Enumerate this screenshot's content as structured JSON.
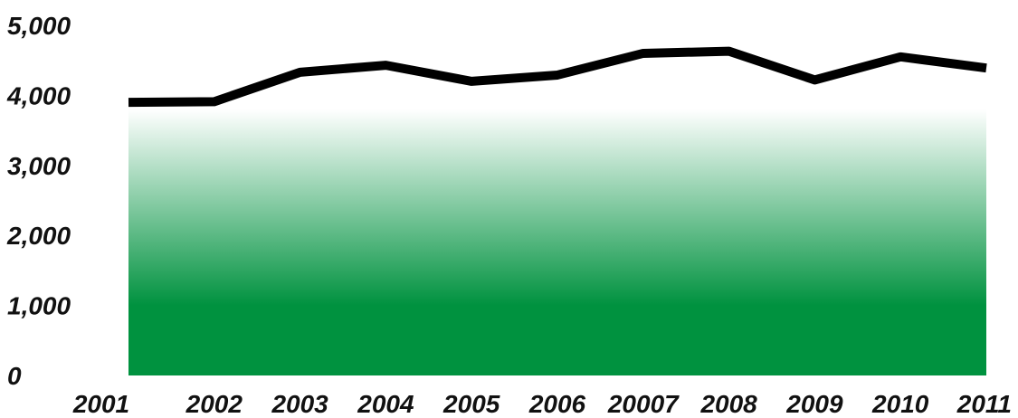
{
  "chart_data": {
    "type": "area",
    "title": "",
    "xlabel": "",
    "ylabel": "",
    "categories": [
      "2001",
      "2002",
      "2003",
      "2004",
      "2005",
      "2006",
      "20007",
      "2008",
      "2009",
      "2010",
      "2011"
    ],
    "series": [
      {
        "values": [
          3900,
          3910,
          4330,
          4430,
          4200,
          4290,
          4600,
          4630,
          4220,
          4550,
          4390
        ]
      }
    ],
    "ylim": [
      0,
      5000
    ],
    "y_ticks": [
      0,
      1000,
      2000,
      3000,
      4000,
      5000
    ],
    "y_tick_labels": [
      "0",
      "1,000",
      "2,000",
      "3,000",
      "4,000",
      "5,000"
    ],
    "grid": false,
    "legend": "none",
    "colors": {
      "line": "#000000",
      "fill_bottom": "#00923f",
      "fill_top": "#ffffff"
    }
  }
}
